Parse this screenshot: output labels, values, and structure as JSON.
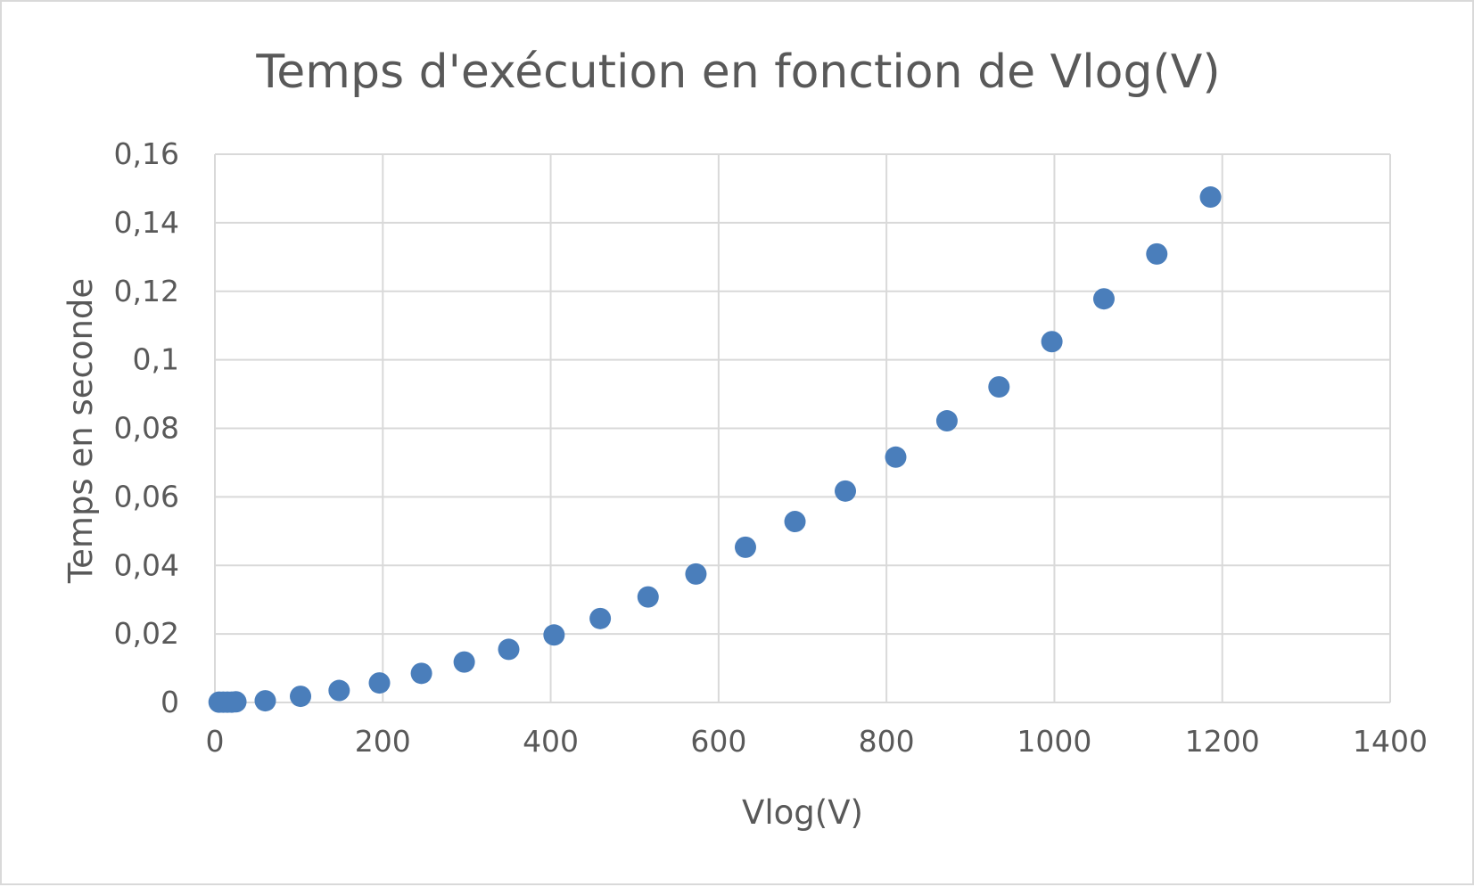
{
  "chart_data": {
    "type": "scatter",
    "title": "Temps d'exécution en fonction de Vlog(V)",
    "xlabel": "Vlog(V)",
    "ylabel": "Temps en seconde",
    "xlim": [
      0,
      1400
    ],
    "ylim": [
      0,
      0.16
    ],
    "x_ticks": [
      "0",
      "200",
      "400",
      "600",
      "800",
      "1000",
      "1200",
      "1400"
    ],
    "y_ticks": [
      "0",
      "0,02",
      "0,04",
      "0,06",
      "0,08",
      "0,1",
      "0,12",
      "0,14",
      "0,16"
    ],
    "grid": true,
    "legend": "none",
    "marker_color": "#4a7ebb",
    "grid_color": "#d9d9d9",
    "text_color": "#595959",
    "series": [
      {
        "points": [
          {
            "x": 5,
            "y": 0.0001
          },
          {
            "x": 10,
            "y": 0.0001
          },
          {
            "x": 15,
            "y": 0.0001
          },
          {
            "x": 20,
            "y": 0.0001
          },
          {
            "x": 25,
            "y": 0.0002
          },
          {
            "x": 60,
            "y": 0.0005
          },
          {
            "x": 102,
            "y": 0.0018
          },
          {
            "x": 148,
            "y": 0.0035
          },
          {
            "x": 196,
            "y": 0.0057
          },
          {
            "x": 246,
            "y": 0.0085
          },
          {
            "x": 297,
            "y": 0.0118
          },
          {
            "x": 350,
            "y": 0.0155
          },
          {
            "x": 404,
            "y": 0.0197
          },
          {
            "x": 459,
            "y": 0.0245
          },
          {
            "x": 516,
            "y": 0.0308
          },
          {
            "x": 573,
            "y": 0.0375
          },
          {
            "x": 632,
            "y": 0.0453
          },
          {
            "x": 691,
            "y": 0.0528
          },
          {
            "x": 751,
            "y": 0.0617
          },
          {
            "x": 811,
            "y": 0.0716
          },
          {
            "x": 872,
            "y": 0.0822
          },
          {
            "x": 934,
            "y": 0.0921
          },
          {
            "x": 997,
            "y": 0.1053
          },
          {
            "x": 1059,
            "y": 0.1178
          },
          {
            "x": 1122,
            "y": 0.1309
          },
          {
            "x": 1186,
            "y": 0.1475
          }
        ]
      }
    ]
  }
}
